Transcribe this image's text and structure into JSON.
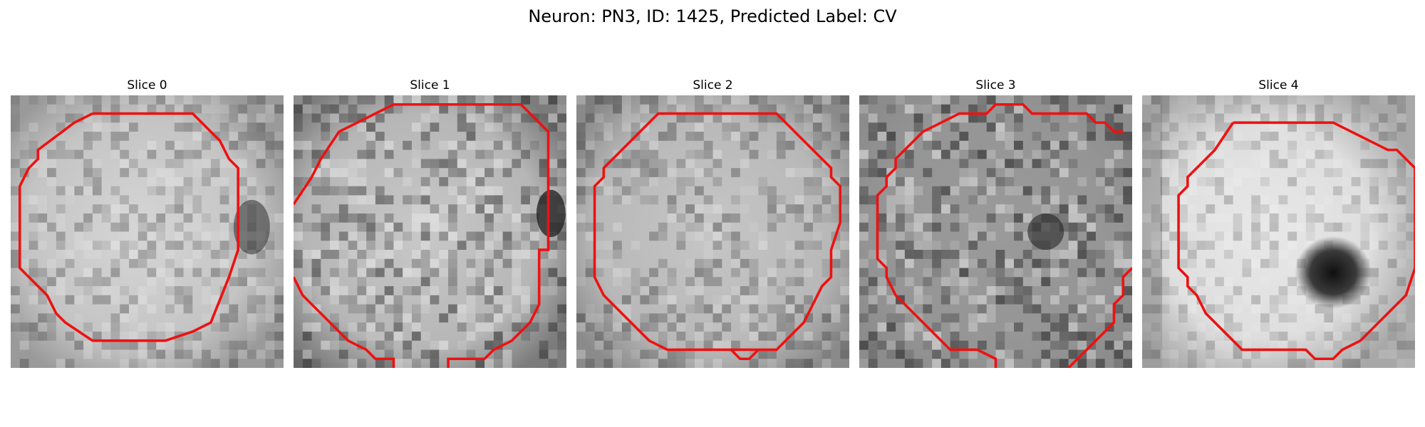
{
  "figure": {
    "title": "Neuron: PN3, ID: 1425, Predicted Label: CV"
  },
  "colors": {
    "contour": "#ee1111",
    "background": "#ffffff"
  },
  "panels": [
    {
      "title": "Slice 0"
    },
    {
      "title": "Slice 1"
    },
    {
      "title": "Slice 2"
    },
    {
      "title": "Slice 3"
    },
    {
      "title": "Slice 4"
    }
  ]
}
